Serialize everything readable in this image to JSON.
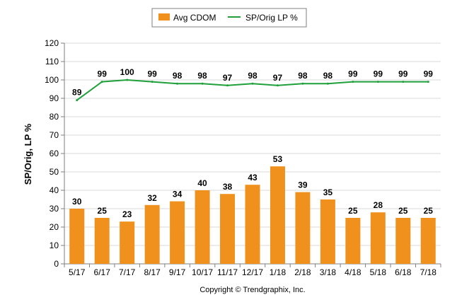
{
  "chart_data": {
    "type": "bar",
    "categories": [
      "5/17",
      "6/17",
      "7/17",
      "8/17",
      "9/17",
      "10/17",
      "11/17",
      "12/17",
      "1/18",
      "2/18",
      "3/18",
      "4/18",
      "5/18",
      "6/18",
      "7/18"
    ],
    "series": [
      {
        "name": "Avg CDOM",
        "kind": "bar",
        "color": "#f0901d",
        "values": [
          30,
          25,
          23,
          32,
          34,
          40,
          38,
          43,
          53,
          39,
          35,
          25,
          28,
          25,
          25
        ]
      },
      {
        "name": "SP/Orig LP %",
        "kind": "line",
        "color": "#1fa03a",
        "values": [
          89,
          99,
          100,
          99,
          98,
          98,
          97,
          98,
          97,
          98,
          98,
          99,
          99,
          99,
          99
        ]
      }
    ],
    "ylabel": "SP/Orig, LP %",
    "ylim": [
      0,
      120
    ],
    "yticks": [
      0,
      10,
      20,
      30,
      40,
      50,
      60,
      70,
      80,
      90,
      100,
      110,
      120
    ],
    "grid": true,
    "legend_position": "top-center"
  },
  "footer": "Copyright © Trendgraphix, Inc."
}
